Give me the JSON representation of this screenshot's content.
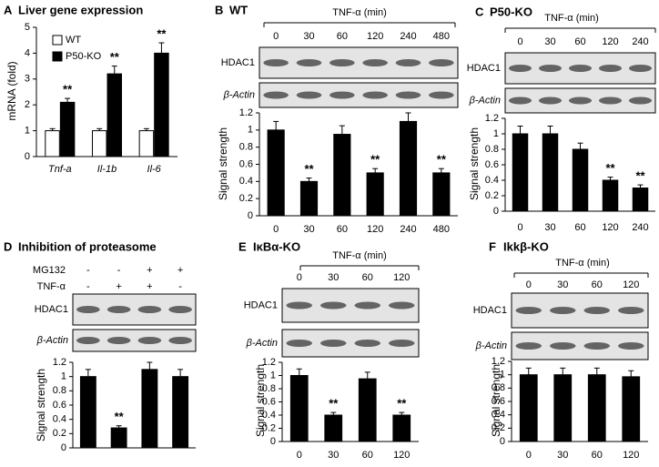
{
  "chart_data": [
    {
      "type": "bar",
      "panel": "A",
      "title": "Liver gene expression",
      "ylabel": "mRNA (fold)",
      "categories": [
        "Tnf-a",
        "Il-1b",
        "Il-6"
      ],
      "series": [
        {
          "name": "WT",
          "color": "#ffffff",
          "values": [
            1,
            1,
            1
          ],
          "errors": [
            0.08,
            0.08,
            0.08
          ]
        },
        {
          "name": "P50-KO",
          "color": "#000000",
          "values": [
            2.1,
            3.2,
            4.0
          ],
          "errors": [
            0.15,
            0.3,
            0.4
          ],
          "significance": [
            "**",
            "**",
            "**"
          ]
        }
      ],
      "ylim": [
        0,
        5
      ],
      "yticks": [
        0,
        1,
        2,
        3,
        4,
        5
      ]
    },
    {
      "type": "bar",
      "panel": "B",
      "title": "WT",
      "header": "TNF-α (min)",
      "blots": [
        "HDAC1",
        "β-Actin"
      ],
      "ylabel": "Signal strength",
      "categories": [
        "0",
        "30",
        "60",
        "120",
        "240",
        "480"
      ],
      "color": "#000000",
      "values": [
        1.0,
        0.4,
        0.95,
        0.5,
        1.1,
        0.5
      ],
      "errors": [
        0.1,
        0.04,
        0.1,
        0.05,
        0.1,
        0.05
      ],
      "significance": [
        null,
        "**",
        null,
        "**",
        null,
        "**"
      ],
      "ylim": [
        0,
        1.2
      ],
      "yticks": [
        0,
        0.2,
        0.4,
        0.6,
        0.8,
        1,
        1.2
      ]
    },
    {
      "type": "bar",
      "panel": "C",
      "title": "P50-KO",
      "header": "TNF-α (min)",
      "blots": [
        "HDAC1",
        "β-Actin"
      ],
      "ylabel": "Signal strength",
      "categories": [
        "0",
        "30",
        "60",
        "120",
        "240"
      ],
      "color": "#000000",
      "values": [
        1.0,
        1.0,
        0.8,
        0.4,
        0.3
      ],
      "errors": [
        0.1,
        0.1,
        0.08,
        0.04,
        0.04
      ],
      "significance": [
        null,
        null,
        null,
        "**",
        "**"
      ],
      "ylim": [
        0,
        1.2
      ],
      "yticks": [
        0,
        0.2,
        0.4,
        0.6,
        0.8,
        1,
        1.2
      ]
    },
    {
      "type": "bar",
      "panel": "D",
      "title": "Inhibition of proteasome",
      "blots": [
        "HDAC1",
        "β-Actin"
      ],
      "ylabel": "Signal strength",
      "conditions": [
        {
          "label": "MG132",
          "marks": [
            "-",
            "-",
            "+",
            "+"
          ]
        },
        {
          "label": "TNF-α",
          "marks": [
            "-",
            "+",
            "+",
            "-"
          ]
        }
      ],
      "color": "#000000",
      "values": [
        1.0,
        0.28,
        1.1,
        1.0
      ],
      "errors": [
        0.1,
        0.03,
        0.1,
        0.1
      ],
      "significance": [
        null,
        "**",
        null,
        null
      ],
      "ylim": [
        0,
        1.2
      ],
      "yticks": [
        0,
        0.2,
        0.4,
        0.6,
        0.8,
        1,
        1.2
      ]
    },
    {
      "type": "bar",
      "panel": "E",
      "title": "IκBα-KO",
      "header": "TNF-α (min)",
      "blots": [
        "HDAC1",
        "β-Actin"
      ],
      "ylabel": "Signal strength",
      "categories": [
        "0",
        "30",
        "60",
        "120"
      ],
      "color": "#000000",
      "values": [
        1.0,
        0.4,
        0.95,
        0.4
      ],
      "errors": [
        0.1,
        0.04,
        0.1,
        0.04
      ],
      "significance": [
        null,
        "**",
        null,
        "**"
      ],
      "ylim": [
        0,
        1.2
      ],
      "yticks": [
        0,
        0.2,
        0.4,
        0.6,
        0.8,
        1,
        1.2
      ]
    },
    {
      "type": "bar",
      "panel": "F",
      "title": "Ikkβ-KO",
      "header": "TNF-α (min)",
      "blots": [
        "HDAC1",
        "β-Actin"
      ],
      "ylabel": "Signal strength",
      "categories": [
        "0",
        "30",
        "60",
        "120"
      ],
      "color": "#000000",
      "values": [
        1.0,
        1.0,
        1.0,
        0.97
      ],
      "errors": [
        0.1,
        0.1,
        0.1,
        0.09
      ],
      "ylim": [
        0,
        1.2
      ],
      "yticks": [
        0,
        0.2,
        0.4,
        0.6,
        0.8,
        1,
        1.2
      ]
    }
  ]
}
